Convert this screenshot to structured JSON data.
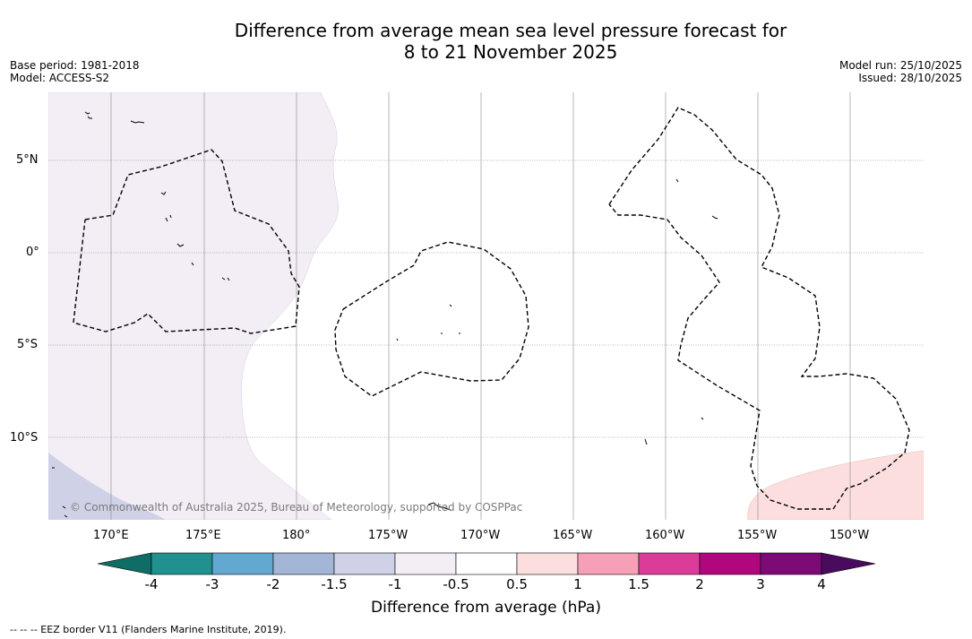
{
  "title_line1": "Difference from average mean sea level pressure forecast for",
  "title_line2": "8 to 21 November 2025",
  "meta_left": {
    "base_period": "Base period: 1981-2018",
    "model": "Model: ACCESS-S2"
  },
  "meta_right": {
    "model_run": "Model run: 25/10/2025",
    "issued": "Issued: 28/10/2025"
  },
  "map": {
    "lat_labels": [
      "5°N",
      "0°",
      "5°S",
      "10°S"
    ],
    "lon_labels": [
      "170°E",
      "175°E",
      "180°",
      "175°W",
      "170°W",
      "165°W",
      "160°W",
      "155°W",
      "150°W"
    ],
    "copyright": "© Commonwealth of Australia 2025, Bureau of Meteorology, supported by COSPPac",
    "colors": {
      "band_m1_m15": "#f3edf6",
      "band_m15_m2": "#cfd2e6",
      "band_1_15": "#fcdede"
    }
  },
  "colorbar": {
    "ticks": [
      "-4",
      "-3",
      "-2",
      "-1.5",
      "-1",
      "-0.5",
      "0.5",
      "1",
      "1.5",
      "2",
      "3",
      "4"
    ],
    "colors": [
      "#0e6e66",
      "#20918f",
      "#62a8d0",
      "#a3b6d8",
      "#cfd2e6",
      "#f3edf6",
      "#ffffff",
      "#fcdede",
      "#f5a0b6",
      "#db3c9a",
      "#b0087c",
      "#7d0b75",
      "#4a0a5e"
    ],
    "title": "Difference from average (hPa)"
  },
  "footer": "--  --  -- EEZ border V11 (Flanders Marine Institute, 2019)."
}
